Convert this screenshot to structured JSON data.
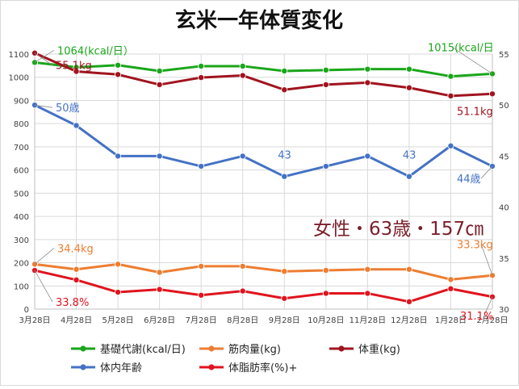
{
  "chart_data": {
    "type": "line",
    "title": "玄米一年体質変化",
    "annotation_main": "女性・63歳・157㎝",
    "categories": [
      "3月28日",
      "4月28日",
      "5月28日",
      "6月28日",
      "7月28日",
      "8月28日",
      "9月28日",
      "10月28日",
      "11月28日",
      "12月28日",
      "1月28日",
      "2月28日"
    ],
    "y_left": {
      "ylim": [
        0,
        1100
      ],
      "ticks": [
        0,
        100,
        200,
        300,
        400,
        500,
        600,
        700,
        800,
        900,
        1000,
        1100
      ]
    },
    "y_right": {
      "ylim": [
        30,
        55
      ],
      "ticks": [
        30,
        35,
        40,
        45,
        50,
        55
      ]
    },
    "grid": true,
    "legend_position": "bottom",
    "series": [
      {
        "name": "基礎代謝(kcal/日)",
        "axis": "left",
        "color": "#1aa61a",
        "values": [
          1064,
          1043,
          1052,
          1027,
          1048,
          1048,
          1027,
          1031,
          1035,
          1035,
          1004,
          1015
        ]
      },
      {
        "name": "筋肉量(kg)",
        "axis": "right",
        "color": "#ed7d31",
        "values": [
          34.4,
          33.9,
          34.4,
          33.6,
          34.2,
          34.2,
          33.7,
          33.8,
          33.9,
          33.9,
          32.9,
          33.3
        ]
      },
      {
        "name": "体重(kg)",
        "axis": "right",
        "color": "#a0141e",
        "values": [
          55.1,
          53.3,
          53.0,
          52.0,
          52.7,
          52.9,
          51.5,
          52.0,
          52.2,
          51.7,
          50.9,
          51.1
        ]
      },
      {
        "name": "体内年齢",
        "axis": "right",
        "color": "#4472c4",
        "values": [
          50,
          48,
          45,
          45,
          44,
          45,
          43,
          44,
          45,
          43,
          46,
          44
        ]
      },
      {
        "name": "体脂肪率(%)+",
        "axis": "left",
        "color": "#e0141e",
        "values": [
          167,
          126,
          73,
          85,
          60,
          78,
          46,
          68,
          68,
          32,
          88,
          53
        ]
      }
    ],
    "data_labels": [
      {
        "text": "1064(kcal/日）",
        "series": 0,
        "index": 0
      },
      {
        "text": "1015(kcal/日",
        "series": 0,
        "index": 11
      },
      {
        "text": "55.1kg",
        "series": 2,
        "index": 0
      },
      {
        "text": "51.1kg",
        "series": 2,
        "index": 11
      },
      {
        "text": "50歳",
        "series": 3,
        "index": 0
      },
      {
        "text": "43",
        "series": 3,
        "index": 6
      },
      {
        "text": "43",
        "series": 3,
        "index": 9
      },
      {
        "text": "44歳",
        "series": 3,
        "index": 11
      },
      {
        "text": "34.4kg",
        "series": 1,
        "index": 0
      },
      {
        "text": "33.3kg",
        "series": 1,
        "index": 11
      },
      {
        "text": "33.8%",
        "series": 4,
        "index": 0
      },
      {
        "text": "31.1%",
        "series": 4,
        "index": 11
      }
    ]
  }
}
